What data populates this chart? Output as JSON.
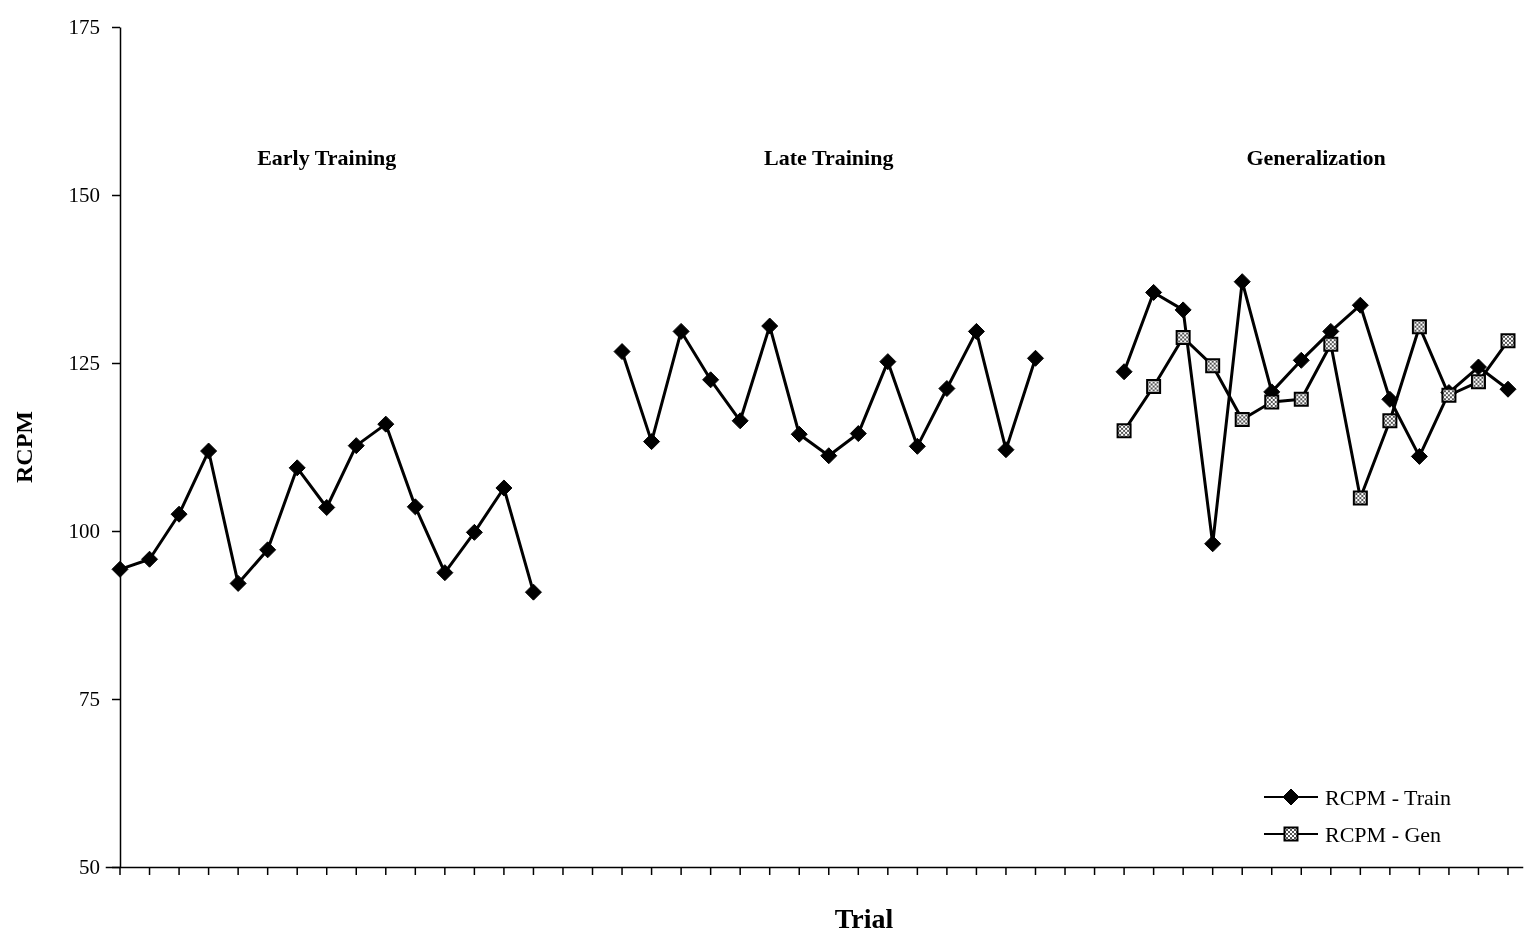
{
  "chart_data": {
    "type": "line",
    "xlabel": "Trial",
    "ylabel": "RCPM",
    "annotations": [
      "Early Training",
      "Late Training",
      "Generalization"
    ],
    "categories": [
      null,
      null,
      null,
      null,
      null,
      null,
      null,
      null,
      null,
      null,
      null,
      null,
      null,
      null,
      null,
      null,
      null,
      null,
      null,
      null,
      null,
      null,
      null,
      null,
      null,
      null,
      null,
      null,
      null,
      null,
      null,
      null,
      null,
      null,
      null,
      null,
      null,
      null,
      null,
      null,
      null,
      null,
      null,
      null,
      null,
      null,
      null,
      null
    ],
    "series": [
      {
        "name": "RCPM - Train",
        "color": "#000000",
        "marker": "diamond",
        "values": [
          94.3,
          95.8,
          102.5,
          111.9,
          92.2,
          97.2,
          109.4,
          103.5,
          112.7,
          115.9,
          103.6,
          93.8,
          99.8,
          106.4,
          90.9,
          null,
          null,
          126.7,
          113.3,
          129.7,
          122.5,
          116.4,
          130.5,
          114.4,
          111.2,
          114.5,
          125.2,
          112.6,
          121.2,
          129.7,
          112.1,
          125.7,
          null,
          null,
          123.7,
          135.5,
          132.9,
          98.1,
          137.1,
          120.7,
          125.4,
          129.7,
          133.6,
          119.6,
          111.1,
          120.6,
          124.4,
          121.1
        ]
      },
      {
        "name": "RCPM - Gen",
        "color": "#000000",
        "marker": "square",
        "values": [
          null,
          null,
          null,
          null,
          null,
          null,
          null,
          null,
          null,
          null,
          null,
          null,
          null,
          null,
          null,
          null,
          null,
          null,
          null,
          null,
          null,
          null,
          null,
          null,
          null,
          null,
          null,
          null,
          null,
          null,
          null,
          null,
          null,
          null,
          114.9,
          121.5,
          128.8,
          124.6,
          116.6,
          119.2,
          119.6,
          127.8,
          104.9,
          116.4,
          130.4,
          120.2,
          122.2,
          128.3
        ]
      }
    ],
    "ylim": [
      50,
      175
    ],
    "yticks": [
      50,
      75,
      100,
      125,
      150,
      175
    ],
    "tick_labels": "y",
    "legend": "bottom right"
  }
}
